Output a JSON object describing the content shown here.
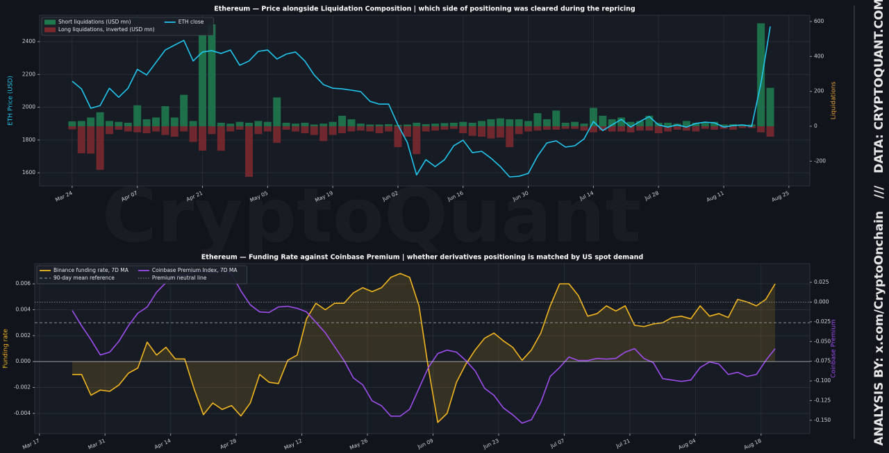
{
  "watermark": "CryptoQuant",
  "side_text": "ANALYSIS BY: x.com/CryptoOnchain   ///   DATA: CRYPTOQUANT.COM",
  "chart_data": [
    {
      "type": "combo",
      "title": "Ethereum — Price alongside Liquidation Composition  |  which side of positioning was cleared during the repricing",
      "ylabel": "ETH Price (USD)",
      "ylabel_color": "#22c8f0",
      "y2label": "Liquidations",
      "y2label_color": "#e8a33a",
      "legend": "upper left",
      "grid": true,
      "xlim": [
        76,
        241.5
      ],
      "xticks": [
        {
          "value": 83,
          "label": "Mar 24"
        },
        {
          "value": 97,
          "label": "Apr 07"
        },
        {
          "value": 111,
          "label": "Apr 21"
        },
        {
          "value": 125,
          "label": "May 05"
        },
        {
          "value": 139,
          "label": "May 19"
        },
        {
          "value": 153,
          "label": "Jun 02"
        },
        {
          "value": 167,
          "label": "Jun 16"
        },
        {
          "value": 181,
          "label": "Jun 30"
        },
        {
          "value": 195,
          "label": "Jul 14"
        },
        {
          "value": 209,
          "label": "Jul 28"
        },
        {
          "value": 223,
          "label": "Aug 11"
        },
        {
          "value": 237,
          "label": "Aug 25"
        }
      ],
      "ylim": [
        1520,
        2561
      ],
      "yticks": [
        1600,
        1800,
        2000,
        2200,
        2400
      ],
      "y2lim": [
        -342,
        636
      ],
      "y2ticks": [
        -200,
        0,
        200,
        400,
        600
      ],
      "x": [
        83,
        85,
        87,
        89,
        91,
        93,
        95,
        97,
        99,
        101,
        103,
        105,
        107,
        109,
        111,
        113,
        115,
        117,
        119,
        121,
        123,
        125,
        127,
        129,
        131,
        133,
        135,
        137,
        139,
        141,
        143,
        145,
        147,
        149,
        151,
        153,
        155,
        157,
        159,
        161,
        163,
        165,
        167,
        169,
        171,
        173,
        175,
        177,
        179,
        181,
        183,
        185,
        187,
        189,
        191,
        193,
        195,
        197,
        199,
        201,
        203,
        205,
        207,
        209,
        211,
        213,
        215,
        217,
        219,
        221,
        223,
        225,
        227,
        229,
        231,
        233
      ],
      "series": [
        {
          "name": "Short liquidations (USD mn)",
          "kind": "bar",
          "axis": "y2",
          "color": "#1f7a50",
          "values": [
            28,
            30,
            50,
            80,
            30,
            25,
            20,
            120,
            40,
            50,
            115,
            50,
            180,
            30,
            524,
            584,
            20,
            15,
            25,
            20,
            30,
            25,
            165,
            20,
            15,
            20,
            10,
            15,
            25,
            60,
            40,
            15,
            10,
            10,
            12,
            8,
            10,
            20,
            12,
            15,
            18,
            20,
            25,
            20,
            30,
            40,
            45,
            40,
            40,
            30,
            75,
            40,
            90,
            20,
            25,
            15,
            105,
            60,
            40,
            50,
            25,
            30,
            60,
            20,
            20,
            15,
            30,
            20,
            20,
            25,
            10,
            12,
            10,
            10,
            590,
            220
          ]
        },
        {
          "name": "Long liquidations, inverted (USD mn)",
          "kind": "bar",
          "axis": "y2",
          "color": "#7b2930",
          "values": [
            -18,
            -155,
            -157,
            -250,
            -45,
            -20,
            -30,
            -35,
            -40,
            -30,
            -50,
            -60,
            -30,
            -90,
            -140,
            -45,
            -140,
            -30,
            -20,
            -290,
            -45,
            -30,
            -95,
            -20,
            -30,
            -40,
            -50,
            -85,
            -50,
            -40,
            -30,
            -25,
            -30,
            -40,
            -30,
            -120,
            -60,
            -160,
            -30,
            -25,
            -20,
            -15,
            -40,
            -55,
            -60,
            -70,
            -65,
            -120,
            -45,
            -30,
            -25,
            -20,
            -20,
            -15,
            -15,
            -25,
            -35,
            -25,
            -30,
            -30,
            -35,
            -25,
            -25,
            -40,
            -30,
            -20,
            -25,
            -30,
            -15,
            -20,
            -15,
            -20,
            -10,
            -10,
            -35,
            -60
          ]
        },
        {
          "name": "ETH close",
          "kind": "line",
          "axis": "y",
          "color": "#22c8f0",
          "values": [
            2159,
            2112,
            1994,
            2010,
            2116,
            2061,
            2116,
            2231,
            2197,
            2273,
            2349,
            2379,
            2408,
            2282,
            2337,
            2345,
            2328,
            2349,
            2256,
            2282,
            2341,
            2349,
            2294,
            2324,
            2337,
            2282,
            2197,
            2138,
            2116,
            2112,
            2104,
            2095,
            2036,
            2019,
            2019,
            1892,
            1786,
            1587,
            1680,
            1638,
            1680,
            1765,
            1799,
            1723,
            1731,
            1689,
            1638,
            1575,
            1579,
            1596,
            1702,
            1782,
            1795,
            1757,
            1765,
            1807,
            1913,
            1858,
            1892,
            1926,
            1879,
            1913,
            1943,
            1892,
            1879,
            1892,
            1879,
            1901,
            1909,
            1905,
            1879,
            1888,
            1892,
            1883,
            2146,
            2493
          ]
        }
      ]
    },
    {
      "type": "line",
      "title": "Ethereum — Funding Rate against Coinbase Premium  |  whether derivatives positioning is matched by US spot demand",
      "ylabel": "Funding rate",
      "ylabel_color": "#f5b820",
      "y2label": "Coinbase Premium",
      "y2label_color": "#a04ef0",
      "legend": "upper left",
      "grid": true,
      "xlim": [
        75,
        240.4
      ],
      "xticks": [
        {
          "value": 76,
          "label": "Mar 17"
        },
        {
          "value": 90,
          "label": "Mar 31"
        },
        {
          "value": 104,
          "label": "Apr 14"
        },
        {
          "value": 118,
          "label": "Apr 28"
        },
        {
          "value": 132,
          "label": "May 12"
        },
        {
          "value": 146,
          "label": "May 26"
        },
        {
          "value": 160,
          "label": "Jun 09"
        },
        {
          "value": 174,
          "label": "Jun 23"
        },
        {
          "value": 188,
          "label": "Jul 07"
        },
        {
          "value": 202,
          "label": "Jul 21"
        },
        {
          "value": 216,
          "label": "Aug 04"
        },
        {
          "value": 230,
          "label": "Aug 18"
        }
      ],
      "ylim": [
        -0.00556,
        0.00756
      ],
      "yticks": [
        -0.004,
        -0.002,
        {
          "value": 0,
          "label": "0.000"
        },
        0.002,
        0.004,
        0.006
      ],
      "y2lim": [
        -0.1668,
        0.0488
      ],
      "y2ticks": [
        0.025,
        {
          "value": 0,
          "label": "0.000"
        },
        -0.025,
        {
          "value": -0.05,
          "label": "-0.050"
        },
        -0.075,
        {
          "value": -0.1,
          "label": "-0.100"
        },
        -0.125,
        {
          "value": -0.15,
          "label": "-0.150"
        }
      ],
      "x": [
        83,
        85,
        87,
        89,
        91,
        93,
        95,
        97,
        99,
        101,
        103,
        105,
        107,
        109,
        111,
        113,
        115,
        117,
        119,
        121,
        123,
        125,
        127,
        129,
        131,
        133,
        135,
        137,
        139,
        141,
        143,
        145,
        147,
        149,
        151,
        153,
        155,
        157,
        159,
        161,
        163,
        165,
        167,
        169,
        171,
        173,
        175,
        177,
        179,
        181,
        183,
        185,
        187,
        189,
        191,
        193,
        195,
        197,
        199,
        201,
        203,
        205,
        207,
        209,
        211,
        213,
        215,
        217,
        219,
        221,
        223,
        225,
        227,
        229,
        231,
        233
      ],
      "series": [
        {
          "name": "Binance funding rate, 7D MA",
          "kind": "line",
          "axis": "y",
          "color": "#f5b820",
          "fill_to_zero": true,
          "values": [
            -0.001,
            -0.001,
            -0.0026,
            -0.0022,
            -0.0023,
            -0.0018,
            -0.0009,
            -0.0005,
            0.0015,
            0.0005,
            0.0011,
            0.0002,
            0.0002,
            -0.0021,
            -0.0041,
            -0.0032,
            -0.0037,
            -0.0034,
            -0.0042,
            -0.0032,
            -0.001,
            -0.0016,
            -0.0017,
            0.0001,
            0.0005,
            0.0033,
            0.0045,
            0.004,
            0.0045,
            0.0045,
            0.0053,
            0.0057,
            0.0054,
            0.0057,
            0.0065,
            0.0068,
            0.0065,
            0.0043,
            -0.0005,
            -0.0047,
            -0.004,
            -0.0016,
            -0.0002,
            0.0009,
            0.0018,
            0.0022,
            0.0016,
            0.0011,
            0.0001,
            0.0009,
            0.0022,
            0.0043,
            0.006,
            0.006,
            0.0051,
            0.0035,
            0.0037,
            0.0043,
            0.0039,
            0.0043,
            0.0028,
            0.0027,
            0.0029,
            0.003,
            0.0034,
            0.0035,
            0.0033,
            0.0043,
            0.0035,
            0.0037,
            0.0034,
            0.0048,
            0.0046,
            0.0043,
            0.0048,
            0.006
          ]
        },
        {
          "name": "90-day mean reference",
          "kind": "hline",
          "axis": "y",
          "color": "#9aa0a8",
          "style": "dashed",
          "value": 0.003
        },
        {
          "name": "Coinbase Premium Index, 7D MA",
          "kind": "line",
          "axis": "y2",
          "color": "#a04ef0",
          "values": [
            -0.0106,
            -0.03,
            -0.0477,
            -0.0671,
            -0.0635,
            -0.0494,
            -0.03,
            -0.0141,
            -0.0062,
            0.0124,
            0.0247,
            0.0335,
            0.0335,
            0.0388,
            0.0388,
            0.0371,
            0.0406,
            0.0362,
            0.0141,
            -0.0035,
            -0.0124,
            -0.0132,
            -0.0062,
            -0.0053,
            -0.0079,
            -0.0124,
            -0.0256,
            -0.0388,
            -0.0565,
            -0.0741,
            -0.0962,
            -0.105,
            -0.1253,
            -0.1315,
            -0.1447,
            -0.1447,
            -0.1359,
            -0.1094,
            -0.083,
            -0.0653,
            -0.0609,
            -0.0635,
            -0.0741,
            -0.0874,
            -0.1094,
            -0.1183,
            -0.1342,
            -0.143,
            -0.1536,
            -0.1492,
            -0.1271,
            -0.0944,
            -0.083,
            -0.0697,
            -0.0741,
            -0.0741,
            -0.0715,
            -0.0724,
            -0.0715,
            -0.0635,
            -0.0591,
            -0.0715,
            -0.0768,
            -0.0971,
            -0.0989,
            -0.1006,
            -0.0989,
            -0.083,
            -0.0759,
            -0.0786,
            -0.0918,
            -0.0891,
            -0.0944,
            -0.0918,
            -0.0741,
            -0.0591
          ]
        },
        {
          "name": "Premium neutral line",
          "kind": "hline",
          "axis": "y2",
          "color": "#8a8f99",
          "style": "dotted",
          "value": 0
        }
      ]
    }
  ]
}
